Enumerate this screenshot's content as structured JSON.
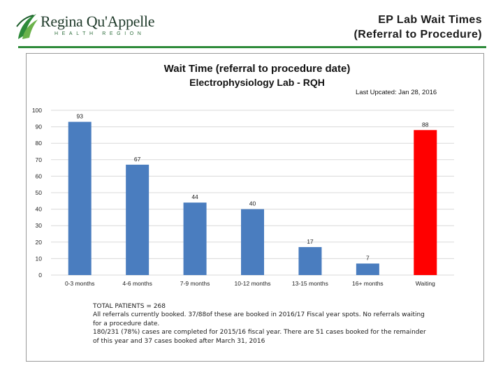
{
  "header": {
    "logo_name": "Regina Qu'Appelle",
    "logo_sub": "HEALTH REGION",
    "title_line1": "EP Lab Wait Times",
    "title_line2": "(Referral to Procedure)"
  },
  "colors": {
    "bar_blue": "#4a7dbf",
    "bar_red": "#ff0000",
    "rule_green": "#2e8b3a",
    "grid": "#d9d9d9"
  },
  "chart_data": {
    "type": "bar",
    "title": "Wait Time (referral to procedure date)",
    "subtitle": "Electrophysiology Lab - RQH",
    "annotation": "Last Upcated:  Jan 28, 2016",
    "categories": [
      "0-3 months",
      "4-6 months",
      "7-9 months",
      "10-12 months",
      "13-15 months",
      "16+ months",
      "Waiting"
    ],
    "values": [
      93,
      67,
      44,
      40,
      17,
      7,
      88
    ],
    "bar_colors": [
      "#4a7dbf",
      "#4a7dbf",
      "#4a7dbf",
      "#4a7dbf",
      "#4a7dbf",
      "#4a7dbf",
      "#ff0000"
    ],
    "ylim": [
      0,
      100
    ],
    "yticks": [
      0,
      10,
      20,
      30,
      40,
      50,
      60,
      70,
      80,
      90,
      100
    ],
    "grid": true,
    "xlabel": "",
    "ylabel": ""
  },
  "notes": {
    "line1": "TOTAL PATIENTS = 268",
    "line2": "All referrals currently booked.  37/88of these are booked in 2016/17 Fiscal year spots.  No referrals waiting",
    "line3": "for a procedure date.",
    "line4": "180/231 (78%) cases are completed for 2015/16 fiscal year.  There are 51 cases booked for the remainder",
    "line5": "of this year and 37 cases booked after March 31, 2016"
  }
}
